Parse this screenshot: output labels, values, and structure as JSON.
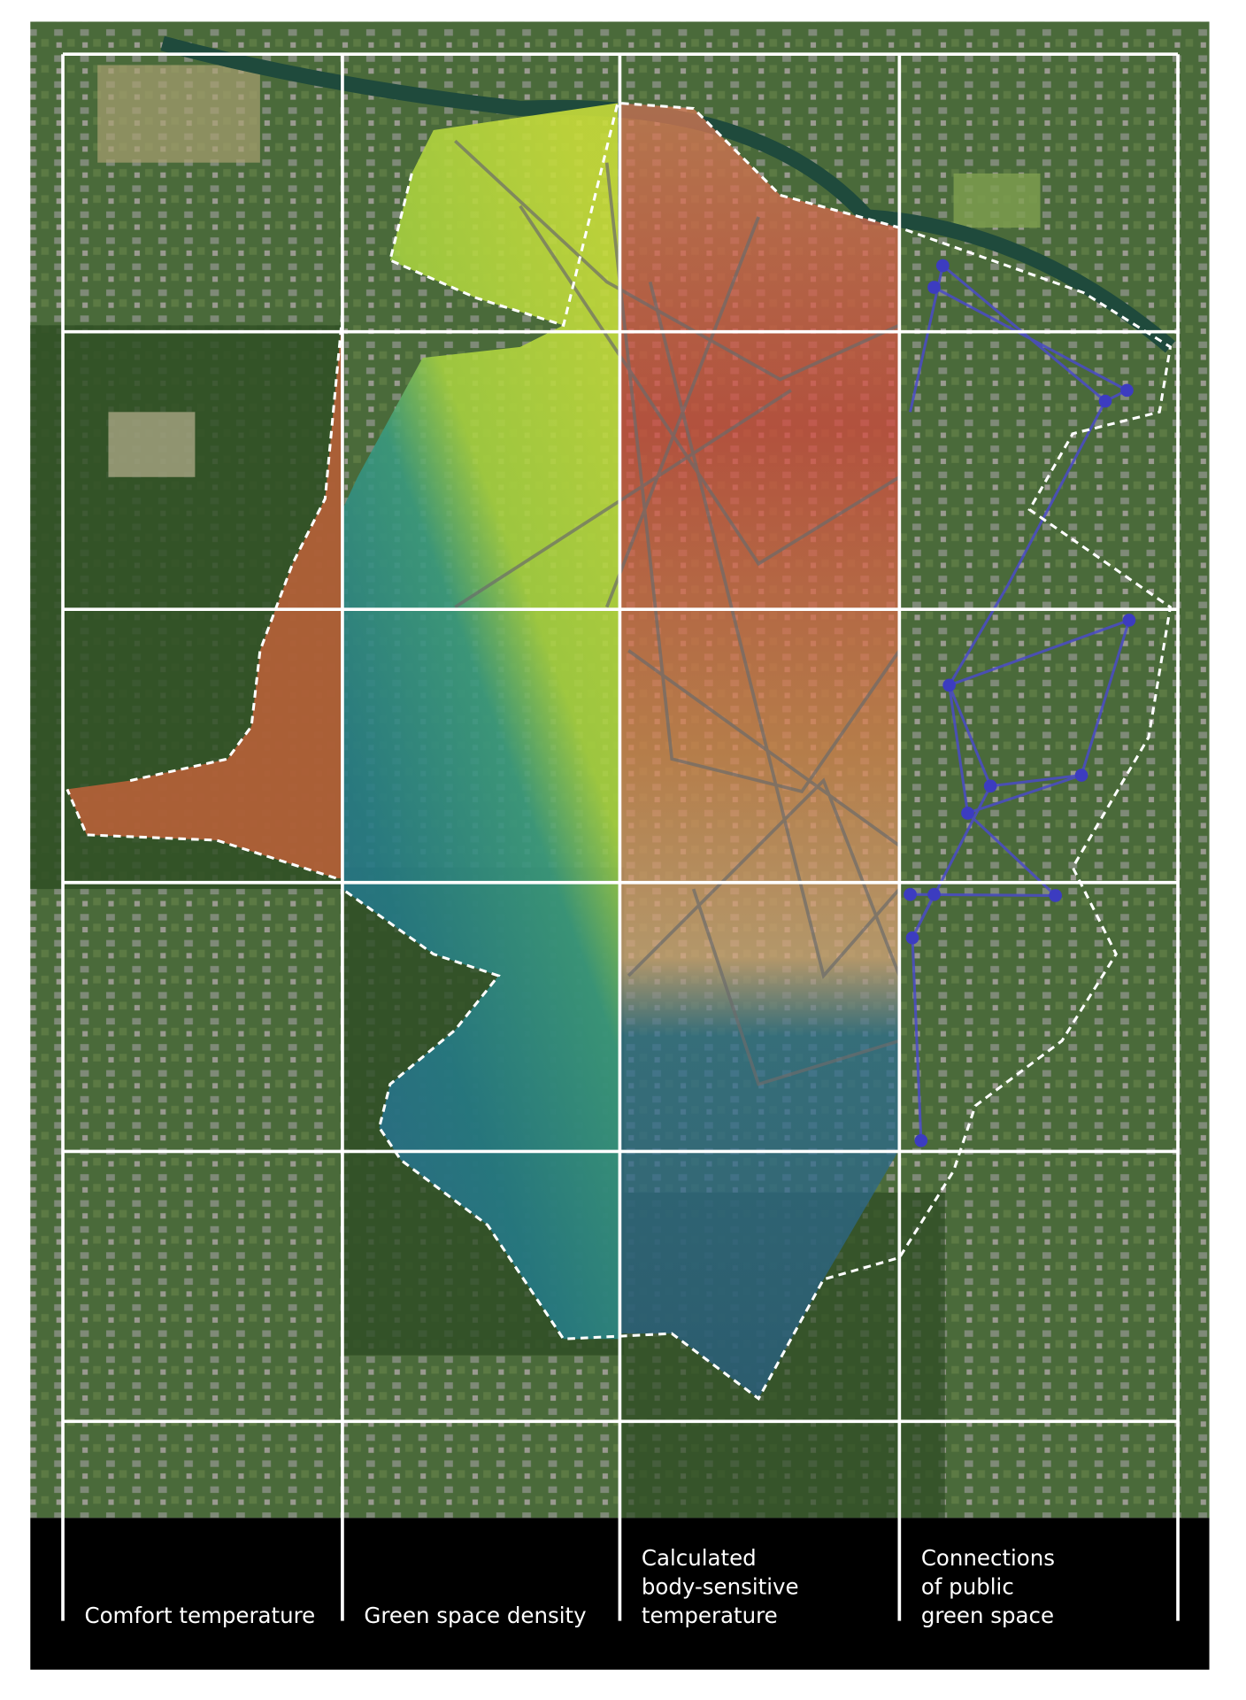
{
  "panels": [
    {
      "label": [
        "Comfort temperature"
      ]
    },
    {
      "label": [
        "Green space density"
      ]
    },
    {
      "label": [
        "Calculated",
        "body-sensitive",
        "temperature"
      ]
    },
    {
      "label": [
        "Connections",
        "of public",
        "green space"
      ]
    }
  ]
}
